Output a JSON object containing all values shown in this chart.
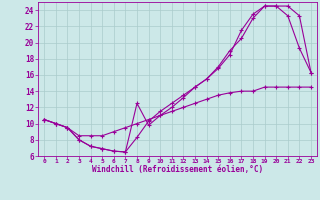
{
  "xlabel": "Windchill (Refroidissement éolien,°C)",
  "bg_color": "#cce8e8",
  "line_color": "#990099",
  "grid_color": "#aacccc",
  "xlim": [
    -0.5,
    23.5
  ],
  "ylim": [
    6,
    25
  ],
  "xticks": [
    0,
    1,
    2,
    3,
    4,
    5,
    6,
    7,
    8,
    9,
    10,
    11,
    12,
    13,
    14,
    15,
    16,
    17,
    18,
    19,
    20,
    21,
    22,
    23
  ],
  "yticks": [
    6,
    8,
    10,
    12,
    14,
    16,
    18,
    20,
    22,
    24
  ],
  "curve1_x": [
    0,
    1,
    2,
    3,
    4,
    5,
    6,
    7,
    8,
    9,
    10,
    11,
    12,
    13,
    14,
    15,
    16,
    17,
    18,
    19,
    20,
    21,
    22,
    23
  ],
  "curve1_y": [
    10.5,
    10.0,
    9.5,
    8.0,
    7.2,
    6.9,
    6.6,
    6.5,
    8.3,
    10.3,
    11.5,
    12.5,
    13.5,
    14.5,
    15.5,
    17.0,
    19.0,
    20.5,
    23.0,
    24.5,
    24.5,
    24.5,
    23.3,
    16.3
  ],
  "curve2_x": [
    0,
    1,
    2,
    3,
    4,
    5,
    6,
    7,
    8,
    9,
    10,
    11,
    12,
    13,
    14,
    15,
    16,
    17,
    18,
    19,
    20,
    21,
    22,
    23
  ],
  "curve2_y": [
    10.5,
    10.0,
    9.5,
    8.0,
    7.2,
    6.9,
    6.6,
    6.5,
    12.5,
    9.8,
    11.0,
    12.0,
    13.2,
    14.5,
    15.5,
    16.8,
    18.5,
    21.5,
    23.5,
    24.5,
    24.5,
    23.3,
    19.3,
    16.3
  ],
  "curve3_x": [
    0,
    1,
    2,
    3,
    4,
    5,
    6,
    7,
    8,
    9,
    10,
    11,
    12,
    13,
    14,
    15,
    16,
    17,
    18,
    19,
    20,
    21,
    22,
    23
  ],
  "curve3_y": [
    10.5,
    10.0,
    9.5,
    8.5,
    8.5,
    8.5,
    9.0,
    9.5,
    10.0,
    10.5,
    11.0,
    11.5,
    12.0,
    12.5,
    13.0,
    13.5,
    13.8,
    14.0,
    14.0,
    14.5,
    14.5,
    14.5,
    14.5,
    14.5
  ]
}
